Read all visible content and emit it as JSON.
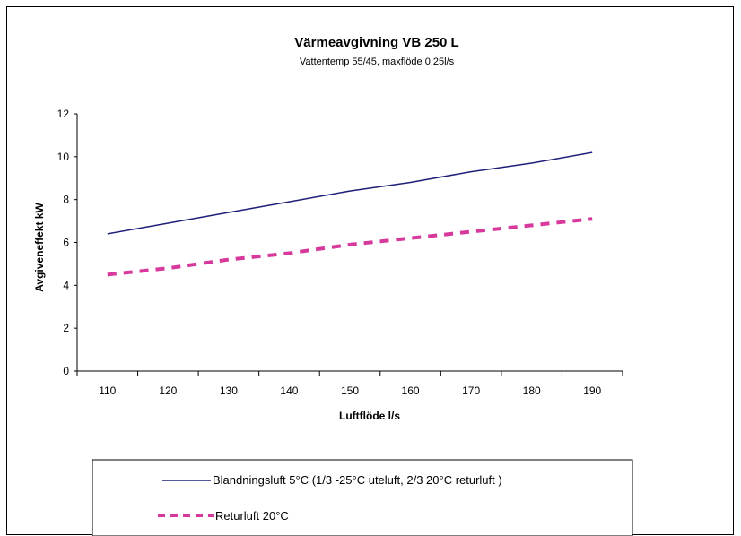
{
  "chart_data": {
    "type": "line",
    "title": "Värmeavgivning VB 250 L",
    "subtitle": "Vattentemp 55/45, maxflöde 0,25l/s",
    "xlabel": "Luftflöde l/s",
    "ylabel": "Avgiveneffekt kW",
    "x": [
      110,
      120,
      130,
      140,
      150,
      160,
      170,
      180,
      190
    ],
    "xlim": [
      105,
      195
    ],
    "ylim": [
      0,
      12
    ],
    "yticks": [
      0,
      2,
      4,
      6,
      8,
      10,
      12
    ],
    "grid": false,
    "legend_position": "bottom",
    "series": [
      {
        "name": "Blandningsluft 5°C (1/3 -25°C uteluft, 2/3 20°C returluft )",
        "values": [
          6.4,
          6.9,
          7.4,
          7.9,
          8.4,
          8.8,
          9.3,
          9.7,
          10.2
        ],
        "color": "#1f1f7a",
        "style": "solid"
      },
      {
        "name": "Returluft 20°C",
        "values": [
          4.5,
          4.8,
          5.2,
          5.5,
          5.9,
          6.2,
          6.5,
          6.8,
          7.1
        ],
        "color": "#d6399b",
        "style": "dashed"
      }
    ]
  }
}
